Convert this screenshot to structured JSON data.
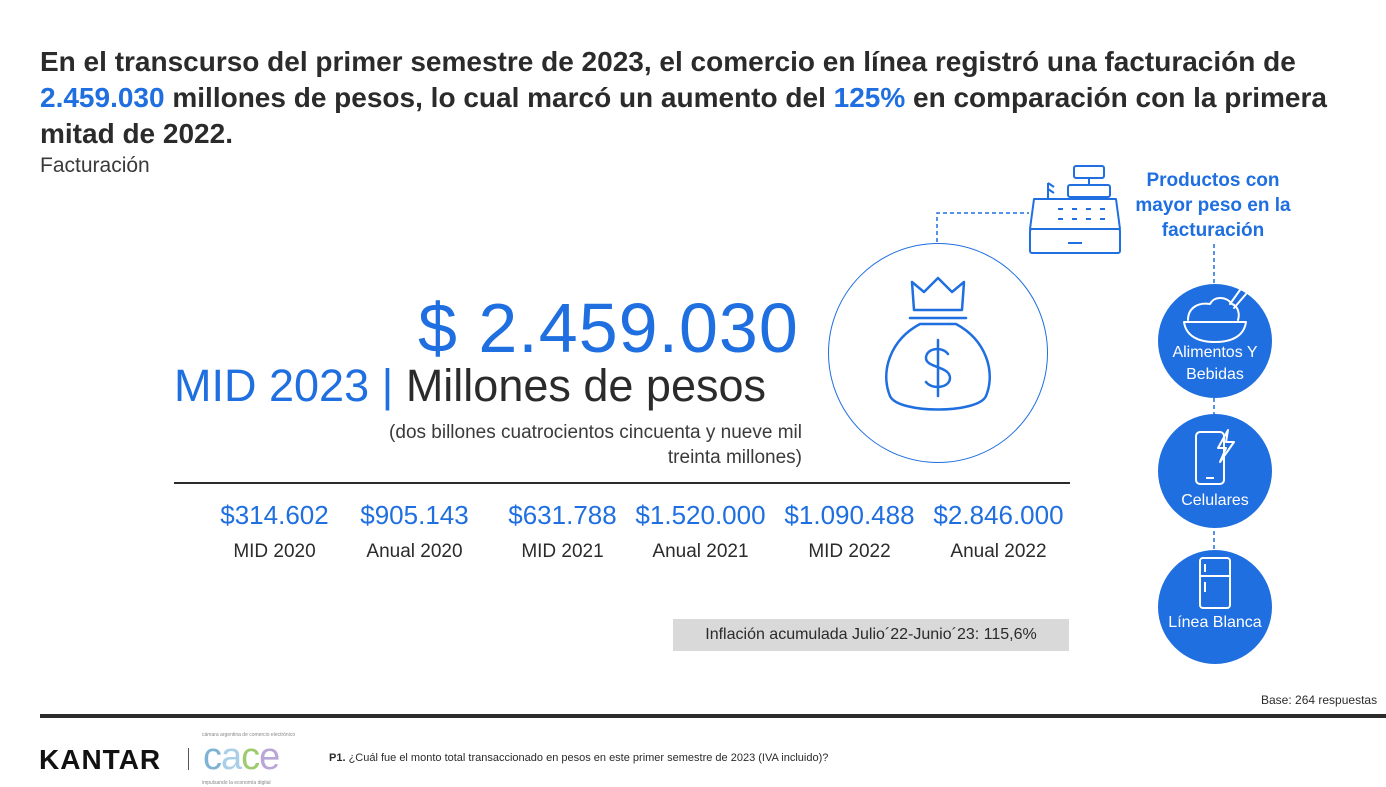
{
  "headline": {
    "part1": "En el transcurso del primer semestre de 2023, el comercio en línea registró una facturación de",
    "amount": "2.459.030",
    "part2": " millones de pesos, lo cual marcó un aumento del ",
    "percent": "125%",
    "part3": " en comparación con la primera mitad de 2022."
  },
  "subtitle": "Facturación",
  "main_figure": {
    "amount": "$ 2.459.030",
    "period": "MID 2023 |",
    "unit": "Millones de pesos",
    "words": "(dos billones cuatrocientos cincuenta y nueve mil treinta millones)"
  },
  "history": [
    {
      "value": "$314.602",
      "label": "MID 2020"
    },
    {
      "value": "$905.143",
      "label": "Anual 2020"
    },
    {
      "value": "$631.788",
      "label": "MID 2021"
    },
    {
      "value": "$1.520.000",
      "label": "Anual 2021"
    },
    {
      "value": "$1.090.488",
      "label": "MID 2022"
    },
    {
      "value": "$2.846.000",
      "label": "Anual 2022"
    }
  ],
  "inflation_note": "Inflación acumulada Julio´22-Junio´23: 115,6%",
  "products": {
    "title": "Productos con mayor peso en la facturación",
    "items": [
      {
        "label": "Alimentos Y Bebidas",
        "icon": "food-bowl-icon"
      },
      {
        "label": "Celulares",
        "icon": "mobile-phone-icon"
      },
      {
        "label": "Línea Blanca",
        "icon": "refrigerator-icon"
      }
    ]
  },
  "base_note": "Base: 264 respuestas",
  "footer": {
    "kantar": "KANTAR",
    "cace_tagline": "cámara argentina de comercio electrónico",
    "cace_letters": [
      "c",
      "a",
      "c",
      "e"
    ],
    "cace_subtitle": "impulsando la economía digital",
    "question_prefix": "P1.",
    "question": " ¿Cuál fue el monto total transaccionado en pesos en este primer semestre de 2023 (IVA incluido)?"
  },
  "colors": {
    "accent": "#1f6fe0",
    "text": "#2b2b2b",
    "inflation_bg": "#d9d9d9",
    "cace_c": "#7fb3d5",
    "cace_a": "#a9cfe8",
    "cace_c2": "#9ecb6f",
    "cace_e": "#b7a6d6"
  }
}
